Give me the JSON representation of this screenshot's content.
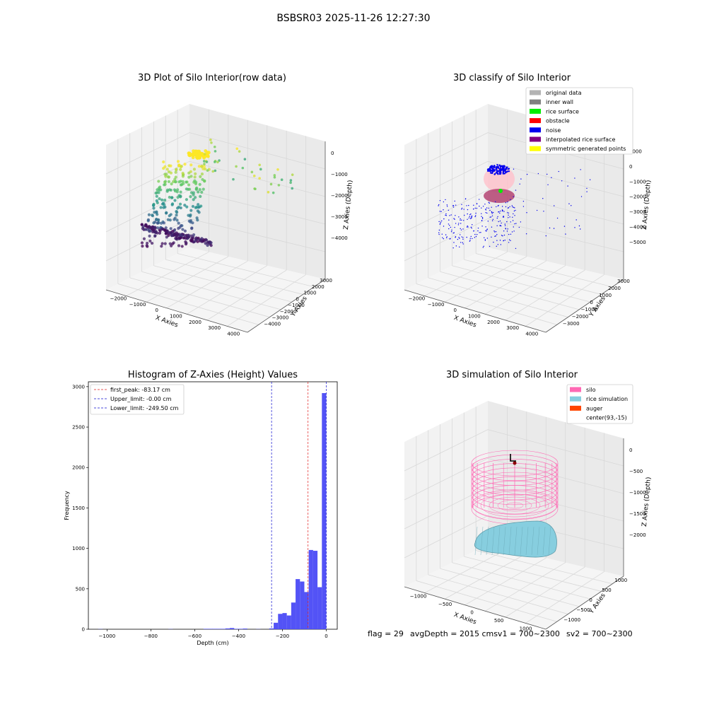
{
  "suptitle": "BSBSR03 2025-11-26 12:27:30",
  "footer": {
    "flag": "flag = 29",
    "avg": "avgDepth = 2015 cmsv1 = 700~2300",
    "sv2": "sv2 = 700~2300"
  },
  "colors": {
    "pane": "#f2f2f2",
    "grid": "#d8d8d8",
    "hist_bar": "#4a4af5",
    "first_peak": "#e02020",
    "limit_line": "#1010d0"
  },
  "chart_data": [
    {
      "type": "scatter",
      "title": "3D Plot of Silo Interior(row data)",
      "xlabel": "X Axies",
      "ylabel": "Y Axies",
      "zlabel": "Z Axies (Depth)",
      "xticks": [
        "−2000",
        "−1000",
        "0",
        "1000",
        "2000",
        "3000",
        "4000"
      ],
      "yticks": [
        "−4000",
        "−3000",
        "−2000",
        "−1000",
        "0",
        "1000",
        "2000",
        "3000"
      ],
      "zticks": [
        "0",
        "−1000",
        "−2000",
        "−3000",
        "−4000"
      ],
      "colormap": "viridis",
      "grid": true
    },
    {
      "type": "scatter",
      "title": "3D classify of Silo Interior",
      "xlabel": "X Axies",
      "ylabel": "Y Axies",
      "zlabel": "Z Axies (Depth)",
      "xticks": [
        "−2000",
        "−1000",
        "0",
        "1000",
        "2000",
        "3000",
        "4000"
      ],
      "yticks": [
        "−3000",
        "−2000",
        "−1000",
        "0",
        "1000",
        "2000",
        "3000"
      ],
      "zticks": [
        "1000",
        "0",
        "−1000",
        "−2000",
        "−3000",
        "−4000",
        "−5000"
      ],
      "legend_position": "top-right",
      "legend": [
        {
          "label": "original data",
          "color": "#b3b3b3"
        },
        {
          "label": "inner wall",
          "color": "#808080"
        },
        {
          "label": "rice surface",
          "color": "#00ee00"
        },
        {
          "label": "obstacle",
          "color": "#ff0000"
        },
        {
          "label": "noise",
          "color": "#0000ee"
        },
        {
          "label": "interpolated rice surface",
          "color": "#800080"
        },
        {
          "label": "symmetric generated points",
          "color": "#ffff00"
        }
      ],
      "grid": true
    },
    {
      "type": "bar",
      "title": "Histogram of Z-Axies (Height) Values",
      "xlabel": "Depth (cm)",
      "ylabel": "Frequency",
      "xlim": [
        -1085,
        50
      ],
      "ylim": [
        0,
        3060
      ],
      "xticks": [
        -1000,
        -800,
        -600,
        -400,
        -200,
        0
      ],
      "yticks": [
        0,
        500,
        1000,
        1500,
        2000,
        2500,
        3000
      ],
      "bin_width": 20,
      "bins": [
        {
          "x": -1040,
          "y": 2
        },
        {
          "x": -720,
          "y": 2
        },
        {
          "x": -560,
          "y": 5
        },
        {
          "x": -540,
          "y": 5
        },
        {
          "x": -520,
          "y": 5
        },
        {
          "x": -500,
          "y": 5
        },
        {
          "x": -480,
          "y": 5
        },
        {
          "x": -460,
          "y": 10
        },
        {
          "x": -440,
          "y": 15
        },
        {
          "x": -420,
          "y": 5
        },
        {
          "x": -400,
          "y": 5
        },
        {
          "x": -380,
          "y": 8
        },
        {
          "x": -320,
          "y": 2
        },
        {
          "x": -260,
          "y": 10
        },
        {
          "x": -240,
          "y": 80
        },
        {
          "x": -220,
          "y": 190
        },
        {
          "x": -200,
          "y": 200
        },
        {
          "x": -180,
          "y": 170
        },
        {
          "x": -160,
          "y": 330
        },
        {
          "x": -140,
          "y": 620
        },
        {
          "x": -120,
          "y": 590
        },
        {
          "x": -100,
          "y": 460
        },
        {
          "x": -80,
          "y": 980
        },
        {
          "x": -60,
          "y": 970
        },
        {
          "x": -40,
          "y": 520
        },
        {
          "x": -20,
          "y": 2920
        }
      ],
      "vlines": [
        {
          "x": -83.17,
          "label": "first_peak: -83.17 cm",
          "color": "#e02020"
        },
        {
          "x": -0.0,
          "label": "Upper_limit: -0.00 cm",
          "color": "#1010d0"
        },
        {
          "x": -249.5,
          "label": "Lower_limit: -249.50 cm",
          "color": "#1010d0"
        }
      ],
      "legend_position": "top-left",
      "grid": false
    },
    {
      "type": "surface",
      "title": "3D simulation of Silo Interior",
      "xlabel": "X Axies",
      "ylabel": "Y Axies",
      "zlabel": "Z Axies (Depth)",
      "xticks": [
        "−1000",
        "−500",
        "0",
        "500",
        "1000"
      ],
      "yticks": [
        "−1000",
        "−500",
        "0",
        "500",
        "1000"
      ],
      "zticks": [
        "0",
        "−500",
        "−1000",
        "−1500",
        "−2000"
      ],
      "legend_position": "top-right",
      "legend": [
        {
          "label": "silo",
          "color": "#ff69b4"
        },
        {
          "label": "rice simulation",
          "color": "#87cedf"
        },
        {
          "label": "auger",
          "color": "#ff4500"
        },
        {
          "label": "center(93,-15)",
          "color": ""
        }
      ],
      "grid": true
    }
  ]
}
